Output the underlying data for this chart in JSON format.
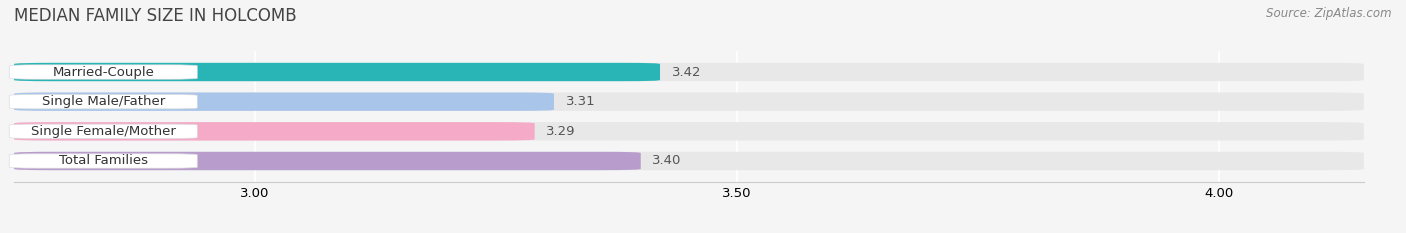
{
  "title": "MEDIAN FAMILY SIZE IN HOLCOMB",
  "source": "Source: ZipAtlas.com",
  "categories": [
    "Married-Couple",
    "Single Male/Father",
    "Single Female/Mother",
    "Total Families"
  ],
  "values": [
    3.42,
    3.31,
    3.29,
    3.4
  ],
  "bar_colors": [
    "#29b5b5",
    "#aac5ea",
    "#f5aac8",
    "#b89dcc"
  ],
  "xmin": 2.75,
  "xlim": [
    2.75,
    4.15
  ],
  "xticks": [
    3.0,
    3.5,
    4.0
  ],
  "bar_height": 0.62,
  "background_color": "#f5f5f5",
  "bar_bg_color": "#e8e8e8",
  "label_fontsize": 9.5,
  "value_fontsize": 9.5,
  "title_fontsize": 12,
  "source_fontsize": 8.5,
  "label_box_color": "white",
  "label_text_color": "#333333",
  "value_text_color": "#555555",
  "title_color": "#444444",
  "source_color": "#888888",
  "grid_color": "#ffffff",
  "spine_color": "#cccccc"
}
